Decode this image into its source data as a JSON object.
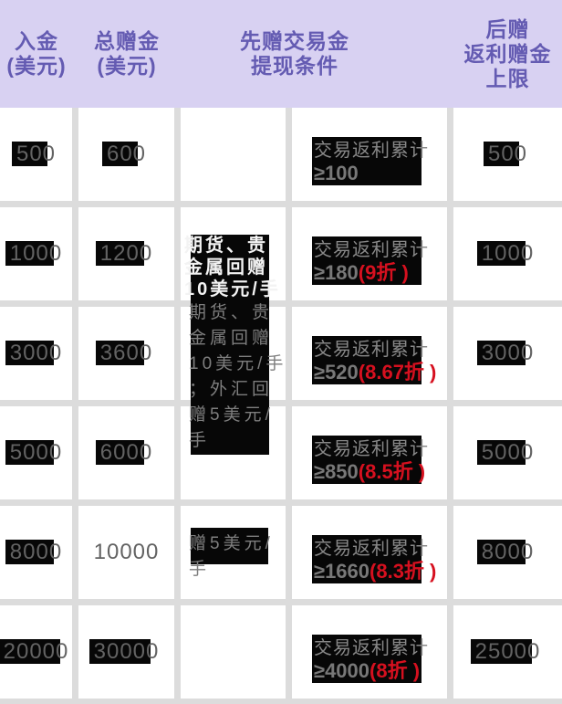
{
  "header": {
    "col_deposit": "入金\n(美元)",
    "col_bonus": "总赠金\n(美元)",
    "col_condition": "先赠交易金\n提现条件",
    "col_cap": "后赠\n返利赠金\n上限"
  },
  "rebate_note": {
    "highlight_text": "期货、贵\n金属回赠\n10美元/手",
    "full_text": "期货、贵\n金属回赠\n10美元/手\n；外汇回\n赠5美元/\n手",
    "fragment_text": "赠5美元/\n手"
  },
  "condition_prefix": "交易返利累计",
  "rows": [
    {
      "deposit": "500",
      "bonus": "600",
      "condition_value": "≥100",
      "condition_discount": "",
      "cap": "500"
    },
    {
      "deposit": "1000",
      "bonus": "1200",
      "condition_value": "≥180",
      "condition_discount": "(9折 )",
      "cap": "1000"
    },
    {
      "deposit": "3000",
      "bonus": "3600",
      "condition_value": "≥520",
      "condition_discount": "(8.67折 )",
      "cap": "3000"
    },
    {
      "deposit": "5000",
      "bonus": "6000",
      "condition_value": "≥850",
      "condition_discount": "(8.5折 )",
      "cap": "5000"
    },
    {
      "deposit": "8000",
      "bonus": "10000",
      "condition_value": "≥1660",
      "condition_discount": "(8.3折 )",
      "cap": "8000"
    },
    {
      "deposit": "20000",
      "bonus": "30000",
      "condition_value": "≥4000",
      "condition_discount": "(8折 )",
      "cap": "25000"
    }
  ],
  "colors": {
    "header_bg": "#d8d1f2",
    "header_text": "#645bb2",
    "divider_grey": "#dcdcdc",
    "number_grey": "#636363",
    "highlight_black": "#070707",
    "discount_red": "#d6101f",
    "note_white_text": "#f3f3f3",
    "note_grey_text": "#7e7e7e"
  }
}
